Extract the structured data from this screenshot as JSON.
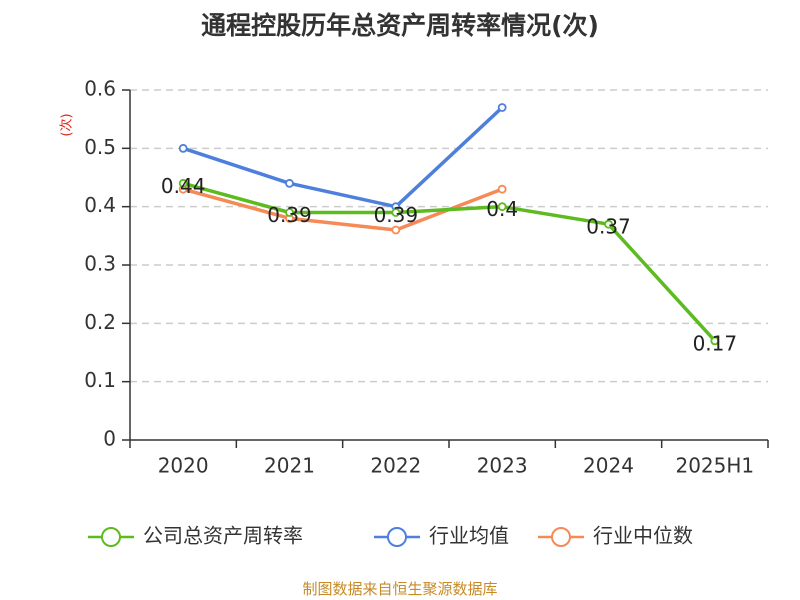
{
  "chart_data": {
    "type": "line",
    "title": "通程控股历年总资产周转率情况(次)",
    "ylabel": "(次)",
    "xlabel": "",
    "categories": [
      "2020",
      "2021",
      "2022",
      "2023",
      "2024",
      "2025H1"
    ],
    "ylim": [
      0,
      0.6
    ],
    "yticks": [
      0,
      0.1,
      0.2,
      0.3,
      0.4,
      0.5,
      0.6
    ],
    "ytick_labels": [
      "0",
      "0.1",
      "0.2",
      "0.3",
      "0.4",
      "0.5",
      "0.6"
    ],
    "grid": true,
    "legend_position": "bottom",
    "series": [
      {
        "name": "公司总资产周转率",
        "color": "#5dbb1f",
        "values": [
          0.44,
          0.39,
          0.39,
          0.4,
          0.37,
          0.17
        ],
        "data_labels": [
          "0.44",
          "0.39",
          "0.39",
          "0.4",
          "0.37",
          "0.17"
        ]
      },
      {
        "name": "行业均值",
        "color": "#4f7fdc",
        "values": [
          0.5,
          0.44,
          0.4,
          0.57,
          null,
          null
        ]
      },
      {
        "name": "行业中位数",
        "color": "#f58a56",
        "values": [
          0.43,
          0.38,
          0.36,
          0.43,
          null,
          null
        ]
      }
    ],
    "source": "制图数据来自恒生聚源数据库",
    "colors": {
      "axis": "#333333",
      "grid": "#cccccc",
      "ylabel": "#e0241b",
      "source": "#c78a26"
    }
  }
}
